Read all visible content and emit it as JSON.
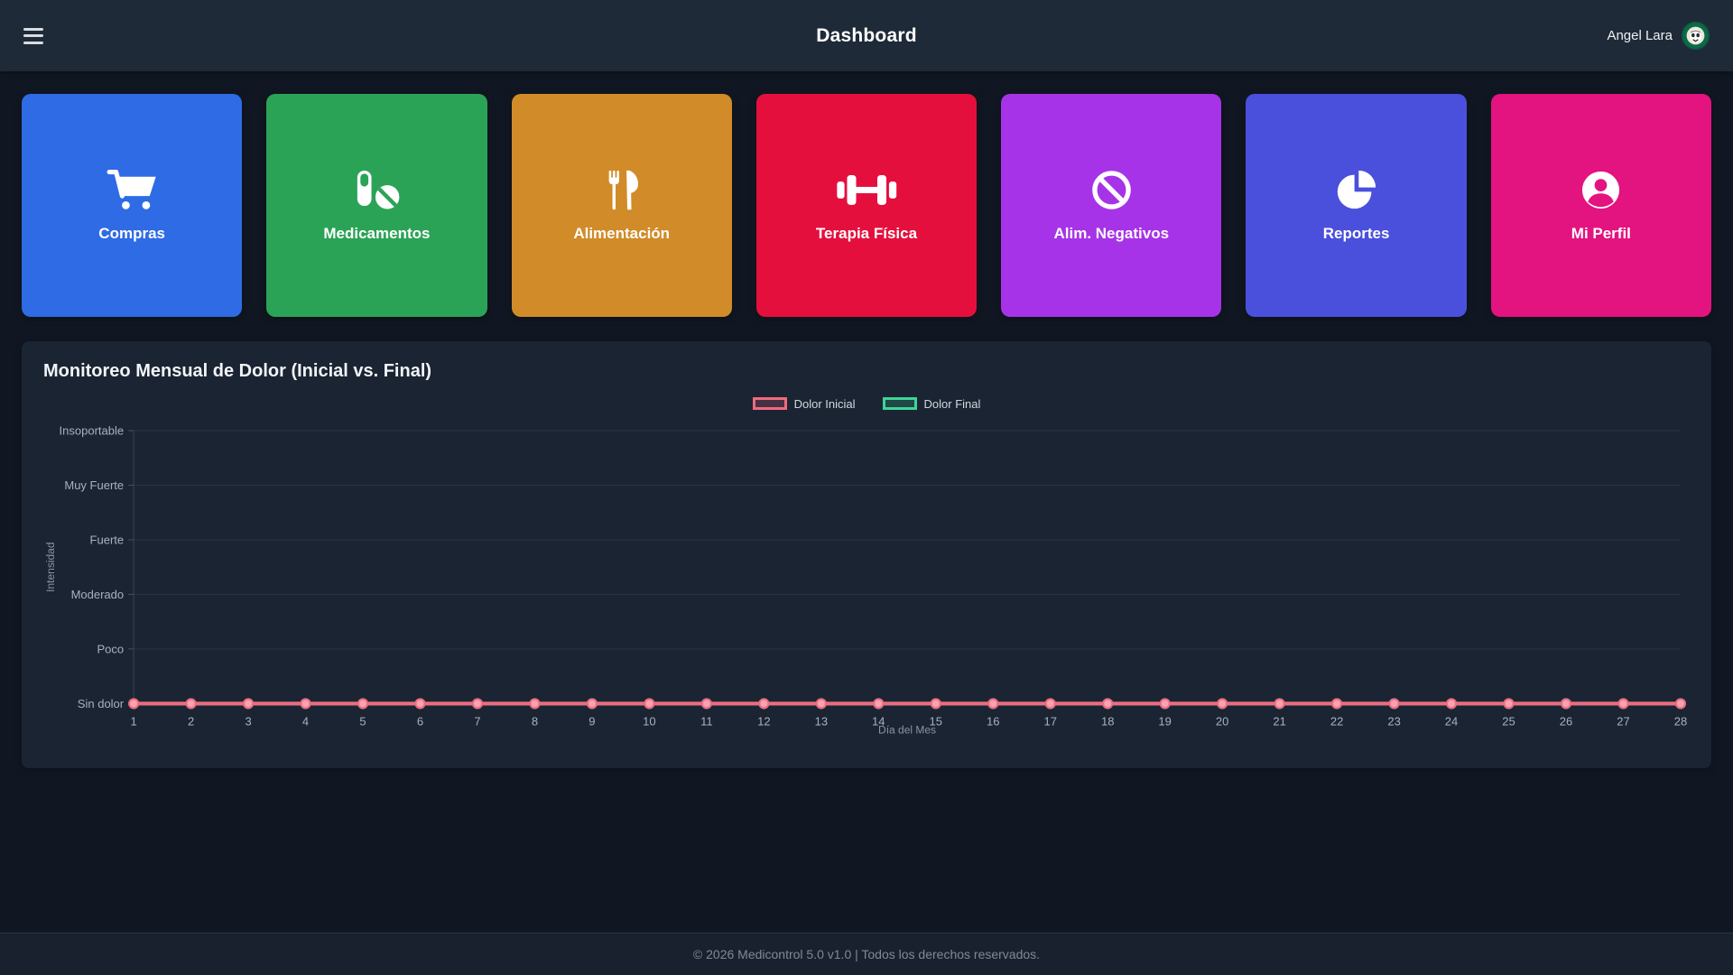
{
  "header": {
    "title": "Dashboard",
    "user_name": "Angel Lara",
    "menu_icon": "hamburger-menu-icon",
    "avatar": "star-wars-coffee-logo"
  },
  "nav_cards": [
    {
      "label": "Compras",
      "color": "#2e6be5",
      "icon": "cart-icon"
    },
    {
      "label": "Medicamentos",
      "color": "#2ba356",
      "icon": "pills-icon"
    },
    {
      "label": "Alimentación",
      "color": "#d18b28",
      "icon": "utensils-icon"
    },
    {
      "label": "Terapia Física",
      "color": "#e50f3e",
      "icon": "dumbbell-icon"
    },
    {
      "label": "Alim. Negativos",
      "color": "#a733e8",
      "icon": "ban-icon"
    },
    {
      "label": "Reportes",
      "color": "#4a50dc",
      "icon": "chart-pie-icon"
    },
    {
      "label": "Mi Perfil",
      "color": "#e31380",
      "icon": "user-circle-icon"
    }
  ],
  "chart_panel": {
    "title": "Monitoreo Mensual de Dolor (Inicial vs. Final)"
  },
  "chart_data": {
    "type": "line",
    "title": "Monitoreo Mensual de Dolor (Inicial vs. Final)",
    "x": [
      1,
      2,
      3,
      4,
      5,
      6,
      7,
      8,
      9,
      10,
      11,
      12,
      13,
      14,
      15,
      16,
      17,
      18,
      19,
      20,
      21,
      22,
      23,
      24,
      25,
      26,
      27,
      28
    ],
    "xlabel": "Día del Mes",
    "ylabel": "Intensidad",
    "y_tick_labels": [
      "Sin dolor",
      "Poco",
      "Moderado",
      "Fuerte",
      "Muy Fuerte",
      "Insoportable"
    ],
    "ylim": [
      0,
      5
    ],
    "grid": "horizontal",
    "legend_position": "top-center",
    "series": [
      {
        "name": "Dolor Inicial",
        "color": "#f06a80",
        "point_color": "#f8a3b1",
        "values": [
          0,
          0,
          0,
          0,
          0,
          0,
          0,
          0,
          0,
          0,
          0,
          0,
          0,
          0,
          0,
          0,
          0,
          0,
          0,
          0,
          0,
          0,
          0,
          0,
          0,
          0,
          0,
          0
        ]
      },
      {
        "name": "Dolor Final",
        "color": "#3ed598",
        "point_color": "#8ce8c4",
        "values": [
          0,
          0,
          0,
          0,
          0,
          0,
          0,
          0,
          0,
          0,
          0,
          0,
          0,
          0,
          0,
          0,
          0,
          0,
          0,
          0,
          0,
          0,
          0,
          0,
          0,
          0,
          0,
          0
        ]
      }
    ]
  },
  "footer": {
    "text": "© 2026 Medicontrol 5.0 v1.0 | Todos los derechos reservados."
  }
}
